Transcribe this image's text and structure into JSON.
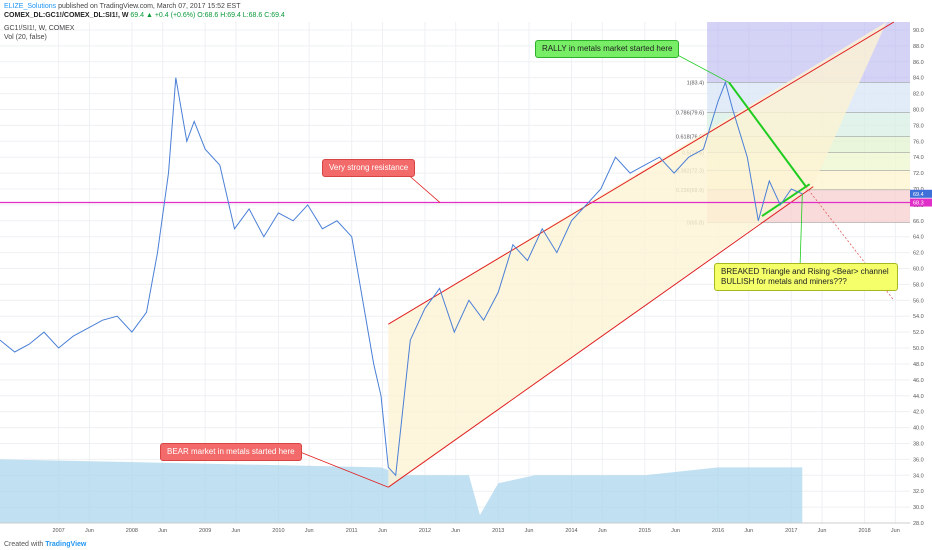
{
  "header": {
    "author": "ELIZE_Solutions",
    "published": "published on TradingView.com, March 07, 2017 15:52 EST",
    "symbol_line": "COMEX_DL:GC1!/COMEX_DL:SI1!, W",
    "quote": "69.4 ▲ +0.4 (+0.6%) O:68.6 H:69.4 L:68.6 C:69.4",
    "ticker": "GC1!/SI1!, W, COMEX",
    "volume": "Vol (20, false)"
  },
  "footer": {
    "created_with": "Created with",
    "brand": "TradingView"
  },
  "annotations": {
    "resistance": "Very strong resistance",
    "bear": "BEAR market in metals started here",
    "rally": "RALLY in metals market started here",
    "breakout_1": "BREAKED Triangle and  Rising <Bear> channel",
    "breakout_2": "BULLISH for metals and miners???"
  },
  "fib_levels": [
    {
      "label": "1(83.4)",
      "value": 83.4
    },
    {
      "label": "0.786(79.6)",
      "value": 79.6
    },
    {
      "label": "0.618(76.6)",
      "value": 76.6
    },
    {
      "label": "0.5(74.6)",
      "value": 74.6
    },
    {
      "label": "0.382(72.3)",
      "value": 72.3
    },
    {
      "label": "0.236(69.9)",
      "value": 69.9
    },
    {
      "label": "0(65.8)",
      "value": 65.8
    }
  ],
  "chart_data": {
    "type": "line",
    "title": "GC1!/SI1!, W, COMEX",
    "ylim": [
      28,
      91
    ],
    "y_ticks": [
      28.0,
      30.0,
      32.0,
      34.0,
      36.0,
      38.0,
      40.0,
      42.0,
      44.0,
      46.0,
      48.0,
      50.0,
      52.0,
      54.0,
      56.0,
      58.0,
      60.0,
      62.0,
      64.0,
      66.0,
      68.0,
      70.0,
      72.0,
      74.0,
      76.0,
      78.0,
      80.0,
      82.0,
      84.0,
      86.0,
      88.0,
      90.0
    ],
    "x_ticks": [
      "2007",
      "Jun",
      "2008",
      "Jun",
      "2009",
      "Jun",
      "2010",
      "Jun",
      "2011",
      "Jun",
      "2012",
      "Jun",
      "2013",
      "Jun",
      "2014",
      "Jun",
      "2015",
      "Jun",
      "2016",
      "Jun",
      "2017",
      "Jun",
      "2018",
      "Jun"
    ],
    "x_tick_times": [
      2007.0,
      2007.42,
      2008.0,
      2008.42,
      2009.0,
      2009.42,
      2010.0,
      2010.42,
      2011.0,
      2011.42,
      2012.0,
      2012.42,
      2013.0,
      2013.42,
      2014.0,
      2014.42,
      2015.0,
      2015.42,
      2016.0,
      2016.42,
      2017.0,
      2017.42,
      2018.0,
      2018.42
    ],
    "series": [
      {
        "x": [
          2006.2,
          2006.4,
          2006.6,
          2006.8,
          2007.0,
          2007.2,
          2007.4,
          2007.6,
          2007.8,
          2008.0,
          2008.2,
          2008.35,
          2008.5,
          2008.6,
          2008.75,
          2008.85,
          2009.0,
          2009.2,
          2009.4,
          2009.6,
          2009.8,
          2010.0,
          2010.2,
          2010.4,
          2010.6,
          2010.8,
          2011.0,
          2011.15,
          2011.3,
          2011.4,
          2011.5,
          2011.6,
          2011.8,
          2012.0,
          2012.2,
          2012.4,
          2012.6,
          2012.8,
          2013.0,
          2013.2,
          2013.4,
          2013.6,
          2013.8,
          2014.0,
          2014.2,
          2014.4,
          2014.6,
          2014.8,
          2015.0,
          2015.2,
          2015.4,
          2015.6,
          2015.8,
          2016.0,
          2016.1,
          2016.2,
          2016.4,
          2016.55,
          2016.7,
          2016.85,
          2017.0,
          2017.15
        ],
        "values": [
          51.0,
          49.5,
          50.5,
          52.0,
          50.0,
          51.5,
          52.5,
          53.5,
          54.0,
          52.0,
          54.5,
          62.0,
          72.0,
          84.0,
          76.0,
          78.5,
          75.0,
          73.0,
          65.0,
          67.5,
          64.0,
          67.0,
          66.0,
          68.0,
          65.0,
          66.0,
          64.0,
          56.0,
          48.0,
          44.0,
          35.0,
          34.0,
          51.0,
          55.0,
          57.5,
          52.0,
          56.0,
          53.5,
          57.0,
          63.0,
          61.0,
          65.0,
          62.0,
          66.0,
          68.0,
          70.0,
          74.0,
          72.0,
          73.0,
          74.0,
          72.0,
          74.0,
          75.0,
          81.0,
          83.4,
          80.0,
          74.0,
          66.0,
          71.0,
          68.0,
          70.0,
          69.4
        ]
      }
    ],
    "resistance_value": 68.3
  }
}
